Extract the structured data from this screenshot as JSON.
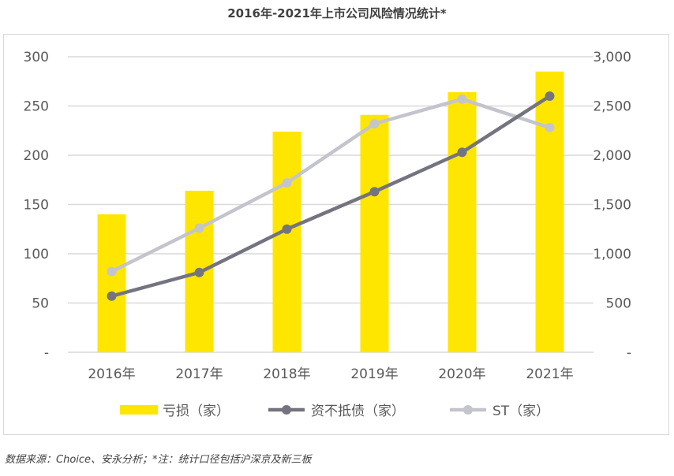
{
  "title": "2016年-2021年上市公司风险情况统计*",
  "source": "数据来源：Choice、安永分析；*注：统计口径包括沪深京及新三板",
  "colors": {
    "bar": "#FFE600",
    "line_dark": "#747480",
    "line_light": "#C4C4CD",
    "grid": "#D9D9D9",
    "text": "#595959"
  },
  "chart_data": {
    "type": "bar",
    "title": "2016年-2021年上市公司风险情况统计*",
    "categories": [
      "2016年",
      "2017年",
      "2018年",
      "2019年",
      "2020年",
      "2021年"
    ],
    "series": [
      {
        "name": "亏损（家）",
        "type": "bar",
        "axis": "left",
        "values": [
          140,
          164,
          224,
          241,
          264,
          285
        ]
      },
      {
        "name": "资不抵债（家）",
        "type": "line",
        "axis": "left",
        "values": [
          57,
          81,
          125,
          163,
          203,
          260
        ]
      },
      {
        "name": "ST（家）",
        "type": "line",
        "axis": "right",
        "values": [
          820,
          1260,
          1720,
          2320,
          2570,
          2280
        ]
      }
    ],
    "y_left": {
      "min": 0,
      "max": 300,
      "ticks": [
        "-",
        "50",
        "100",
        "150",
        "200",
        "250",
        "300"
      ]
    },
    "y_right": {
      "min": 0,
      "max": 3000,
      "ticks": [
        "-",
        "500",
        "1,000",
        "1,500",
        "2,000",
        "2,500",
        "3,000"
      ]
    },
    "grid": true,
    "legend_position": "bottom"
  }
}
